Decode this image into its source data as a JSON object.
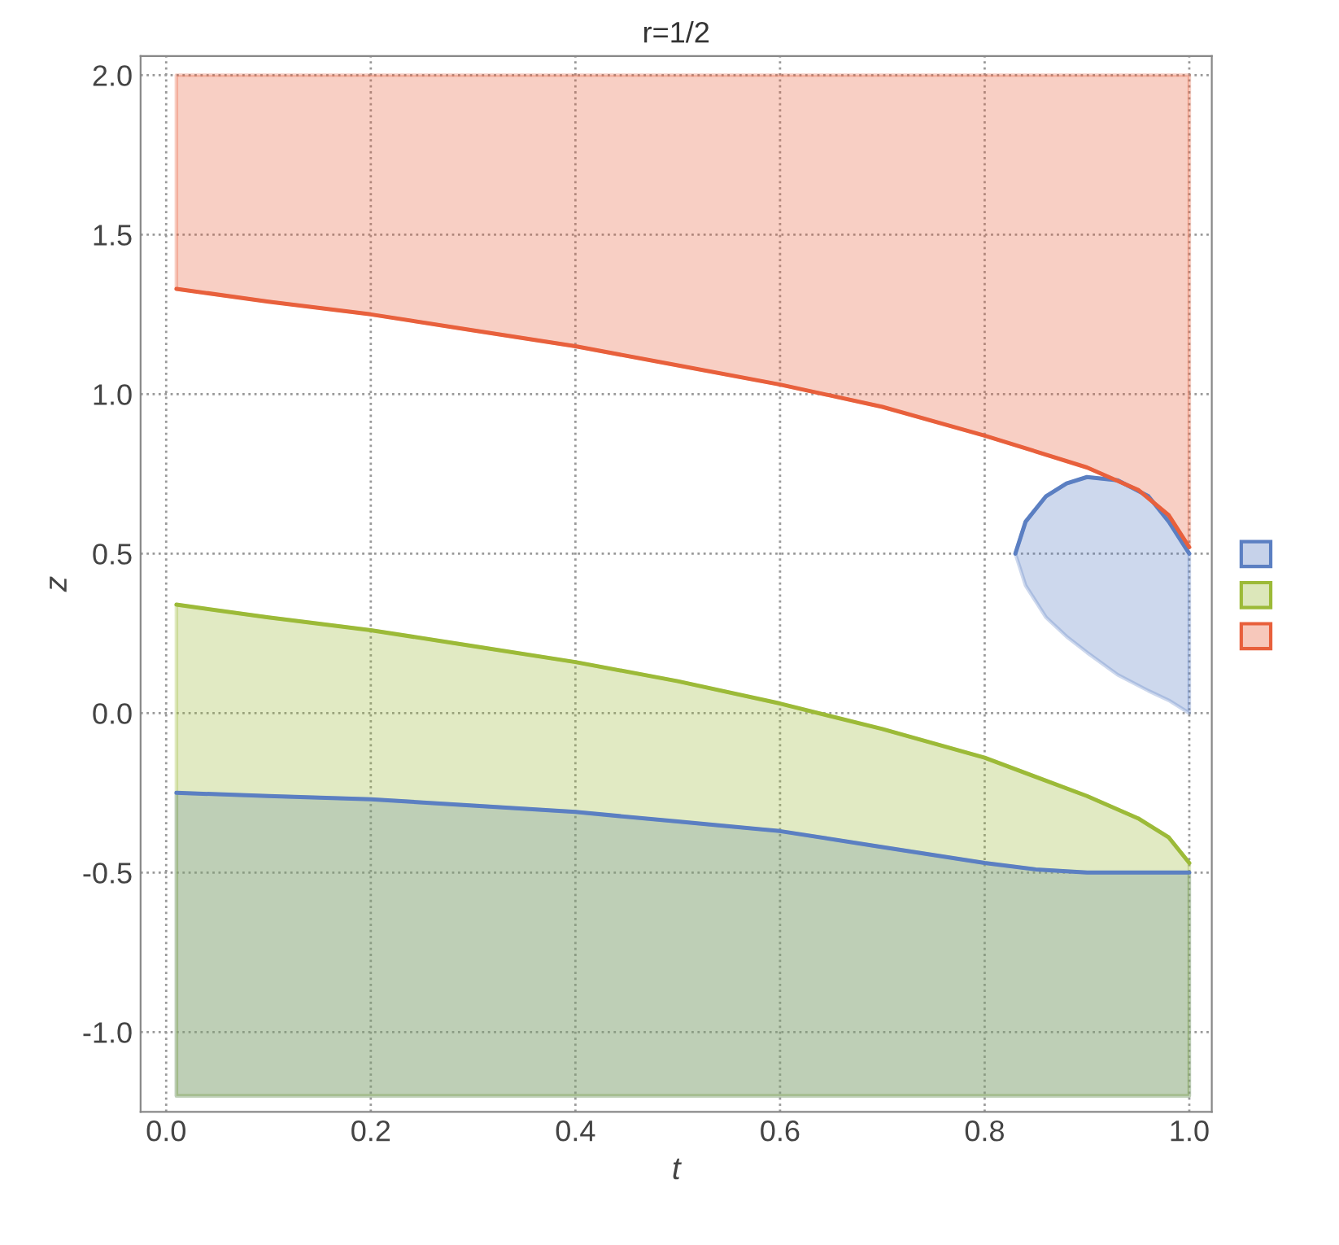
{
  "chart_data": {
    "type": "line",
    "title": "r=1/2",
    "xlabel": "t",
    "ylabel": "z",
    "xlim": [
      -0.025,
      1.022
    ],
    "ylim": [
      -1.25,
      2.06
    ],
    "xticks": [
      {
        "value": 0,
        "label": "0.0"
      },
      {
        "value": 0.2,
        "label": "0.2"
      },
      {
        "value": 0.4,
        "label": "0.4"
      },
      {
        "value": 0.6,
        "label": "0.6"
      },
      {
        "value": 0.8,
        "label": "0.8"
      },
      {
        "value": 1,
        "label": "1.0"
      }
    ],
    "yticks": [
      {
        "value": -1,
        "label": "-1.0"
      },
      {
        "value": -0.5,
        "label": "-0.5"
      },
      {
        "value": 0,
        "label": "0.0"
      },
      {
        "value": 0.5,
        "label": "0.5"
      },
      {
        "value": 1,
        "label": "1.0"
      },
      {
        "value": 1.5,
        "label": "1.5"
      },
      {
        "value": 2,
        "label": "2.0"
      }
    ],
    "grid": true,
    "series": [
      {
        "color": "#5b7fc2",
        "x": [
          0.01,
          0.1,
          0.2,
          0.3,
          0.4,
          0.5,
          0.6,
          0.7,
          0.8,
          0.85,
          0.9,
          1.0
        ],
        "values": [
          -0.25,
          -0.26,
          -0.27,
          -0.29,
          -0.31,
          -0.34,
          -0.37,
          -0.42,
          -0.47,
          -0.49,
          -0.5,
          -0.5
        ],
        "lower": [
          -1.2,
          -1.2,
          -1.2,
          -1.2,
          -1.2,
          -1.2,
          -1.2,
          -1.2,
          -1.2,
          -1.2,
          -1.2,
          -1.2
        ],
        "upper": [
          -0.25,
          -0.26,
          -0.27,
          -0.29,
          -0.31,
          -0.34,
          -0.37,
          -0.42,
          -0.47,
          -0.49,
          -0.5,
          -0.5
        ]
      },
      {
        "color": "#5b7fc2",
        "x": [
          0.83,
          0.84,
          0.86,
          0.88,
          0.9,
          0.93,
          0.96,
          0.98,
          1.0
        ],
        "values": [
          0.5,
          0.6,
          0.68,
          0.72,
          0.74,
          0.73,
          0.68,
          0.6,
          0.5
        ],
        "lower": [
          0.5,
          0.4,
          0.3,
          0.24,
          0.19,
          0.12,
          0.07,
          0.04,
          0.0
        ],
        "upper": [
          0.5,
          0.6,
          0.68,
          0.72,
          0.74,
          0.73,
          0.68,
          0.6,
          0.5
        ]
      },
      {
        "color": "#9cba38",
        "x": [
          0.01,
          0.1,
          0.2,
          0.3,
          0.4,
          0.5,
          0.6,
          0.7,
          0.8,
          0.9,
          0.95,
          0.98,
          1.0
        ],
        "values": [
          0.34,
          0.3,
          0.26,
          0.21,
          0.16,
          0.1,
          0.03,
          -0.05,
          -0.14,
          -0.26,
          -0.33,
          -0.39,
          -0.47
        ],
        "lower": [
          -1.2,
          -1.2,
          -1.2,
          -1.2,
          -1.2,
          -1.2,
          -1.2,
          -1.2,
          -1.2,
          -1.2,
          -1.2,
          -1.2,
          -1.2
        ],
        "upper": [
          0.34,
          0.3,
          0.26,
          0.21,
          0.16,
          0.1,
          0.03,
          -0.05,
          -0.14,
          -0.26,
          -0.33,
          -0.39,
          -0.47
        ]
      },
      {
        "color": "#e8603c",
        "x": [
          0.01,
          0.1,
          0.2,
          0.3,
          0.4,
          0.5,
          0.6,
          0.7,
          0.8,
          0.9,
          0.95,
          0.98,
          1.0
        ],
        "values": [
          1.33,
          1.29,
          1.25,
          1.2,
          1.15,
          1.09,
          1.03,
          0.96,
          0.87,
          0.77,
          0.7,
          0.62,
          0.52
        ],
        "lower": [
          1.33,
          1.29,
          1.25,
          1.2,
          1.15,
          1.09,
          1.03,
          0.96,
          0.87,
          0.77,
          0.7,
          0.62,
          0.52
        ],
        "upper": [
          2,
          2,
          2,
          2,
          2,
          2,
          2,
          2,
          2,
          2,
          2,
          2,
          2
        ]
      }
    ]
  }
}
